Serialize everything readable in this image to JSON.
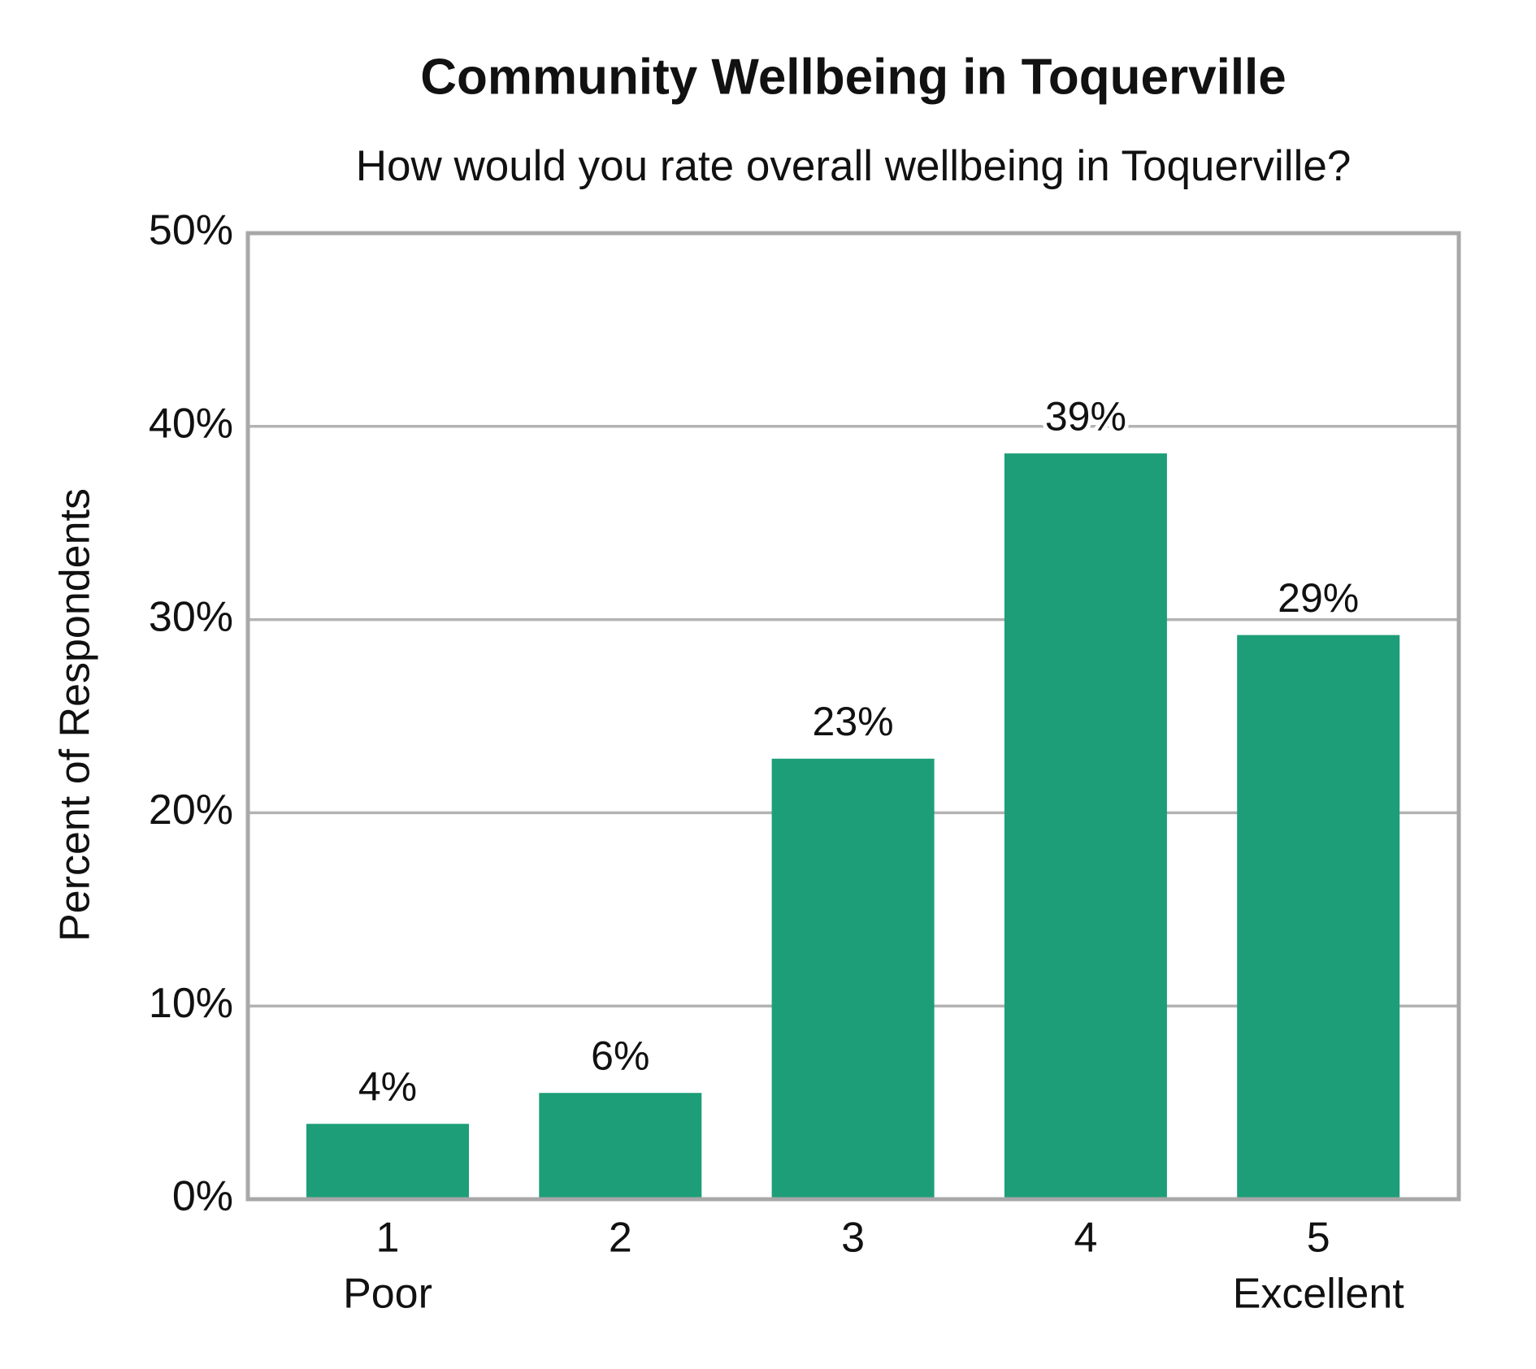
{
  "chart_data": {
    "type": "bar",
    "title": "Community Wellbeing in Toquerville",
    "subtitle": "How would you rate overall wellbeing in Toquerville?",
    "y_label": "Percent of Respondents",
    "categories": [
      "1",
      "2",
      "3",
      "4",
      "5"
    ],
    "anchor_labels": [
      "Poor",
      null,
      null,
      null,
      "Excellent"
    ],
    "values": [
      3.9,
      5.5,
      22.8,
      38.6,
      29.2
    ],
    "value_labels": [
      "4%",
      "6%",
      "23%",
      "39%",
      "29%"
    ],
    "color": "#1d9e78",
    "ylim": [
      0,
      50
    ],
    "yticks": [
      {
        "value": 0,
        "label": "0%"
      },
      {
        "value": 10,
        "label": "10%"
      },
      {
        "value": 20,
        "label": "20%"
      },
      {
        "value": 30,
        "label": "30%"
      },
      {
        "value": 40,
        "label": "40%"
      },
      {
        "value": 50,
        "label": "50%"
      }
    ],
    "grid": true
  }
}
